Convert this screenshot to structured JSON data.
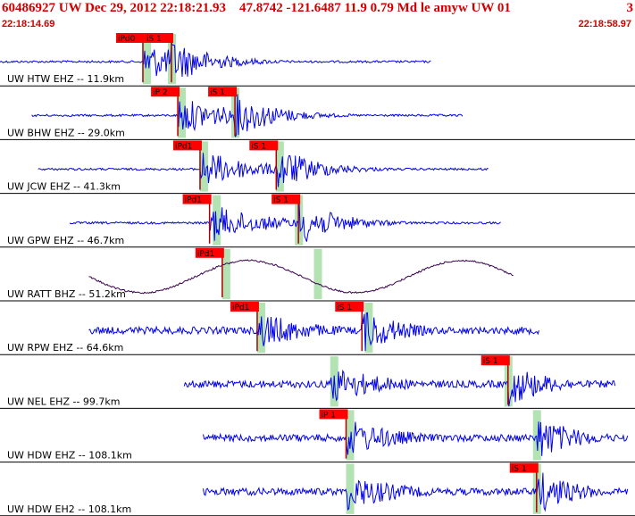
{
  "header": {
    "event_line": "60486927 UW Dec 29, 2012 22:18:21.93    47.8742 -121.6487 11.9 0.79 Md le amyw UW 01",
    "page_number": "3",
    "start_time": "22:18:14.69",
    "end_time": "22:18:58.97"
  },
  "colors": {
    "header_text": "#d10000",
    "trace": "#0000ee",
    "broadband_trace": "#3a0050",
    "pick_box": "#ff0000",
    "pick_line": "#b00000",
    "pick_window": "#b3e2b3",
    "separator": "#000000"
  },
  "stations": [
    {
      "label": "UW HTW EHZ -- 11.9km",
      "style": "short",
      "start": 0.0,
      "end": 0.68,
      "p_label": "iPd0",
      "p_time": 0.225,
      "s_label": "iS 1",
      "s_time": 0.27,
      "green": [
        0.225,
        0.27
      ]
    },
    {
      "label": "UW BHW EHZ -- 29.0km",
      "style": "short",
      "start": 0.05,
      "end": 0.73,
      "p_label": "iP 2",
      "p_time": 0.28,
      "s_label": "iS 1",
      "s_time": 0.37,
      "green": [
        0.28,
        0.37
      ]
    },
    {
      "label": "UW JCW EHZ -- 41.3km",
      "style": "short",
      "start": 0.06,
      "end": 0.77,
      "p_label": "iPd1",
      "p_time": 0.315,
      "s_label": "iS 1",
      "s_time": 0.435,
      "green": [
        0.315,
        0.44
      ]
    },
    {
      "label": "UW GPW EHZ -- 46.7km",
      "style": "short",
      "start": 0.11,
      "end": 0.79,
      "p_label": "iPd1",
      "p_time": 0.33,
      "s_label": "iS 1",
      "s_time": 0.47,
      "green": [
        0.335,
        0.47
      ]
    },
    {
      "label": "UW RATT BHZ -- 51.2km",
      "style": "broadband",
      "start": 0.14,
      "end": 0.81,
      "p_label": "iPd1",
      "p_time": 0.35,
      "s_label": "",
      "s_time": 0.54,
      "green": [
        0.35,
        0.5
      ]
    },
    {
      "label": "UW RPW EHZ -- 64.6km",
      "style": "noisy",
      "start": 0.14,
      "end": 0.85,
      "p_label": "iPd1",
      "p_time": 0.405,
      "s_label": "iS 1",
      "s_time": 0.57,
      "green": [
        0.405,
        0.58
      ]
    },
    {
      "label": "UW NEL EHZ -- 99.7km",
      "style": "noisy",
      "start": 0.29,
      "end": 0.97,
      "p_label": "",
      "p_time": 0.52,
      "s_label": "iS 1",
      "s_time": 0.8,
      "green": [
        0.52,
        0.8
      ]
    },
    {
      "label": "UW HDW EHZ -- 108.1km",
      "style": "noisy",
      "start": 0.32,
      "end": 0.99,
      "p_label": "iP 1",
      "p_time": 0.545,
      "s_label": "",
      "s_time": 0.845,
      "green": [
        0.545,
        0.845
      ]
    },
    {
      "label": "UW HDW EH2 -- 108.1km",
      "style": "noisy",
      "start": 0.32,
      "end": 0.99,
      "p_label": "",
      "p_time": 0.545,
      "s_label": "iS 1",
      "s_time": 0.845,
      "green": [
        0.545,
        0.845
      ]
    }
  ]
}
